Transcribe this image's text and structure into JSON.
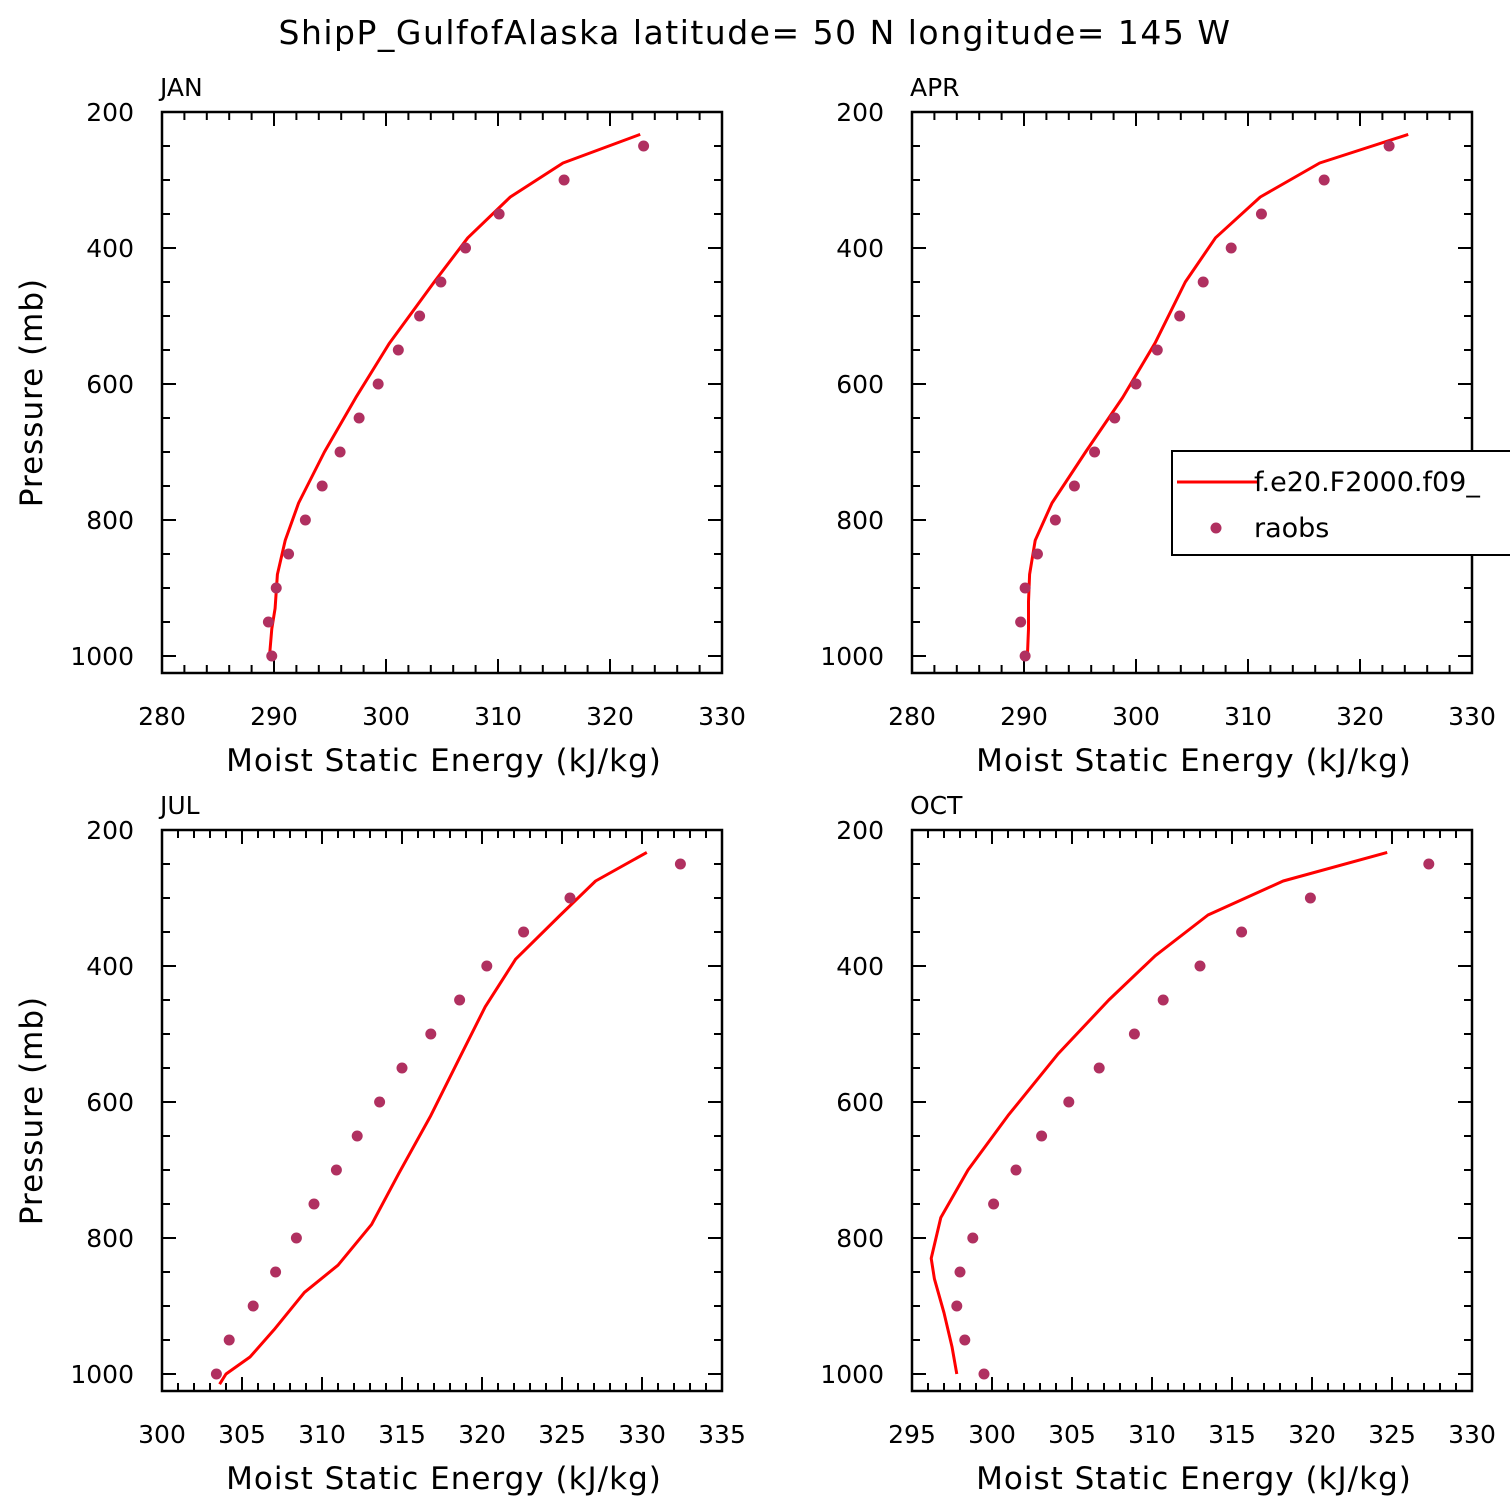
{
  "title": "ShipP_GulfofAlaska  latitude= 50 N longitude= 145 W",
  "colors": {
    "model": "#ff0000",
    "obs": "#b03060",
    "axis": "#000000"
  },
  "legend": {
    "panel": "APR",
    "placement": "right",
    "model_label": "f.e20.F2000.f09_",
    "obs_label": "raobs"
  },
  "chart_data": [
    {
      "type": "line",
      "panel": "JAN",
      "xlabel": "Moist Static Energy (kJ/kg)",
      "ylabel": "Pressure (mb)",
      "xlim": [
        280,
        330
      ],
      "ylim": [
        1025,
        200
      ],
      "xticks": [
        280,
        290,
        300,
        310,
        320,
        330
      ],
      "yticks": [
        200,
        400,
        600,
        800,
        1000
      ],
      "series": [
        {
          "name": "f.e20.F2000.f09_",
          "kind": "line",
          "points": [
            [
              289.6,
              1000
            ],
            [
              289.8,
              960
            ],
            [
              290.1,
              930
            ],
            [
              290.3,
              880
            ],
            [
              291.0,
              830
            ],
            [
              292.2,
              775
            ],
            [
              294.5,
              700
            ],
            [
              297.3,
              620
            ],
            [
              300.3,
              540
            ],
            [
              304.3,
              450
            ],
            [
              307.3,
              385
            ],
            [
              311.1,
              325
            ],
            [
              315.8,
              275
            ],
            [
              322.7,
              233
            ]
          ]
        },
        {
          "name": "raobs",
          "kind": "scatter",
          "points": [
            [
              289.8,
              1000
            ],
            [
              289.5,
              950
            ],
            [
              290.2,
              900
            ],
            [
              291.3,
              850
            ],
            [
              292.8,
              800
            ],
            [
              294.3,
              750
            ],
            [
              295.9,
              700
            ],
            [
              297.6,
              650
            ],
            [
              299.3,
              600
            ],
            [
              301.1,
              550
            ],
            [
              303.0,
              500
            ],
            [
              304.9,
              450
            ],
            [
              307.1,
              400
            ],
            [
              310.1,
              350
            ],
            [
              315.9,
              300
            ],
            [
              323.0,
              250
            ]
          ]
        }
      ]
    },
    {
      "type": "line",
      "panel": "APR",
      "xlabel": "Moist Static Energy (kJ/kg)",
      "ylabel": "",
      "xlim": [
        280,
        330
      ],
      "ylim": [
        1025,
        200
      ],
      "xticks": [
        280,
        290,
        300,
        310,
        320,
        330
      ],
      "yticks": [
        200,
        400,
        600,
        800,
        1000
      ],
      "series": [
        {
          "name": "f.e20.F2000.f09_",
          "kind": "line",
          "points": [
            [
              290.3,
              1000
            ],
            [
              290.4,
              960
            ],
            [
              290.4,
              920
            ],
            [
              290.5,
              880
            ],
            [
              291.0,
              830
            ],
            [
              292.5,
              775
            ],
            [
              295.5,
              700
            ],
            [
              298.8,
              620
            ],
            [
              301.7,
              540
            ],
            [
              304.4,
              450
            ],
            [
              307.1,
              385
            ],
            [
              311.1,
              325
            ],
            [
              316.4,
              275
            ],
            [
              324.3,
              233
            ]
          ]
        },
        {
          "name": "raobs",
          "kind": "scatter",
          "points": [
            [
              290.1,
              1000
            ],
            [
              289.7,
              950
            ],
            [
              290.1,
              900
            ],
            [
              291.2,
              850
            ],
            [
              292.8,
              800
            ],
            [
              294.5,
              750
            ],
            [
              296.3,
              700
            ],
            [
              298.1,
              650
            ],
            [
              300.0,
              600
            ],
            [
              301.9,
              550
            ],
            [
              303.9,
              500
            ],
            [
              306.0,
              450
            ],
            [
              308.5,
              400
            ],
            [
              311.2,
              350
            ],
            [
              316.8,
              300
            ],
            [
              322.6,
              250
            ]
          ]
        }
      ]
    },
    {
      "type": "line",
      "panel": "JUL",
      "xlabel": "Moist Static Energy (kJ/kg)",
      "ylabel": "Pressure (mb)",
      "xlim": [
        300,
        335
      ],
      "ylim": [
        1025,
        200
      ],
      "xticks": [
        300,
        305,
        310,
        315,
        320,
        325,
        330,
        335
      ],
      "yticks": [
        200,
        400,
        600,
        800,
        1000
      ],
      "series": [
        {
          "name": "f.e20.F2000.f09_",
          "kind": "line",
          "points": [
            [
              303.6,
              1015
            ],
            [
              304.0,
              1000
            ],
            [
              305.5,
              975
            ],
            [
              307.0,
              935
            ],
            [
              308.9,
              880
            ],
            [
              311.0,
              840
            ],
            [
              313.1,
              780
            ],
            [
              314.8,
              705
            ],
            [
              316.8,
              620
            ],
            [
              318.6,
              535
            ],
            [
              320.2,
              460
            ],
            [
              322.1,
              390
            ],
            [
              324.9,
              325
            ],
            [
              327.1,
              275
            ],
            [
              330.3,
              233
            ]
          ]
        },
        {
          "name": "raobs",
          "kind": "scatter",
          "points": [
            [
              303.4,
              1000
            ],
            [
              304.2,
              950
            ],
            [
              305.7,
              900
            ],
            [
              307.1,
              850
            ],
            [
              308.4,
              800
            ],
            [
              309.5,
              750
            ],
            [
              310.9,
              700
            ],
            [
              312.2,
              650
            ],
            [
              313.6,
              600
            ],
            [
              315.0,
              550
            ],
            [
              316.8,
              500
            ],
            [
              318.6,
              450
            ],
            [
              320.3,
              400
            ],
            [
              322.6,
              350
            ],
            [
              325.5,
              300
            ],
            [
              332.4,
              250
            ]
          ]
        }
      ]
    },
    {
      "type": "line",
      "panel": "OCT",
      "xlabel": "Moist Static Energy (kJ/kg)",
      "ylabel": "",
      "xlim": [
        295,
        330
      ],
      "ylim": [
        1025,
        200
      ],
      "xticks": [
        295,
        300,
        305,
        310,
        315,
        320,
        325,
        330
      ],
      "yticks": [
        200,
        400,
        600,
        800,
        1000
      ],
      "series": [
        {
          "name": "f.e20.F2000.f09_",
          "kind": "line",
          "points": [
            [
              297.8,
              1000
            ],
            [
              297.5,
              960
            ],
            [
              297.0,
              910
            ],
            [
              296.4,
              860
            ],
            [
              296.2,
              830
            ],
            [
              296.8,
              770
            ],
            [
              298.5,
              700
            ],
            [
              301.0,
              620
            ],
            [
              304.1,
              530
            ],
            [
              307.3,
              450
            ],
            [
              310.2,
              385
            ],
            [
              313.5,
              325
            ],
            [
              318.2,
              275
            ],
            [
              324.7,
              233
            ]
          ]
        },
        {
          "name": "raobs",
          "kind": "scatter",
          "points": [
            [
              299.5,
              1000
            ],
            [
              298.3,
              950
            ],
            [
              297.8,
              900
            ],
            [
              298.0,
              850
            ],
            [
              298.8,
              800
            ],
            [
              300.1,
              750
            ],
            [
              301.5,
              700
            ],
            [
              303.1,
              650
            ],
            [
              304.8,
              600
            ],
            [
              306.7,
              550
            ],
            [
              308.9,
              500
            ],
            [
              310.7,
              450
            ],
            [
              313.0,
              400
            ],
            [
              315.6,
              350
            ],
            [
              319.9,
              300
            ],
            [
              327.3,
              250
            ]
          ]
        }
      ]
    }
  ]
}
